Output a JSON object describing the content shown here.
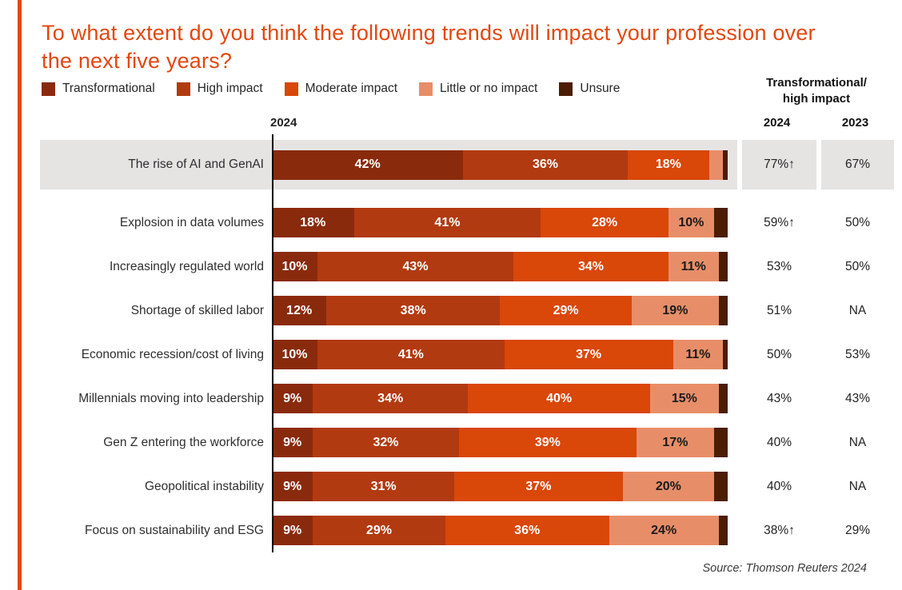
{
  "chart_data": {
    "type": "bar",
    "variant": "horizontal-stacked",
    "title": "To what extent do you think the following trends will impact your profession over the next five years?",
    "axis_label": "2024",
    "label_threshold": 9,
    "categories": [
      "The rise of AI and GenAI",
      "Explosion in data volumes",
      "Increasingly regulated world",
      "Shortage of skilled labor",
      "Economic recession/cost of living",
      "Millennials moving into leadership",
      "Gen Z entering the workforce",
      "Geopolitical instability",
      "Focus on sustainability and ESG"
    ],
    "series": [
      {
        "name": "Transformational",
        "color": "#8A2A0C",
        "text_color": "#FFFFFF",
        "show_labels": true,
        "values": [
          42,
          18,
          10,
          12,
          10,
          9,
          9,
          9,
          9
        ]
      },
      {
        "name": "High impact",
        "color": "#B23A10",
        "text_color": "#FFFFFF",
        "show_labels": true,
        "values": [
          36,
          41,
          43,
          38,
          41,
          34,
          32,
          31,
          29
        ]
      },
      {
        "name": "Moderate impact",
        "color": "#D94709",
        "text_color": "#FFFFFF",
        "show_labels": true,
        "values": [
          18,
          28,
          34,
          29,
          37,
          40,
          39,
          37,
          36
        ]
      },
      {
        "name": "Little or no impact",
        "color": "#E78E68",
        "text_color": "#1A1A1A",
        "show_labels": true,
        "values": [
          3,
          10,
          11,
          19,
          11,
          15,
          17,
          20,
          24
        ]
      },
      {
        "name": "Unsure",
        "color": "#4C1D05",
        "text_color": "#FFFFFF",
        "show_labels": false,
        "values": [
          1,
          3,
          2,
          2,
          1,
          2,
          3,
          3,
          2
        ]
      }
    ],
    "highlighted_row": 0,
    "summary": {
      "header_line1": "Transformational/",
      "header_line2": "high impact",
      "col1_label": "2024",
      "col2_label": "2023",
      "col1_values": [
        "77%↑",
        "59%↑",
        "53%",
        "51%",
        "50%",
        "43%",
        "40%",
        "40%",
        "38%↑"
      ],
      "col2_values": [
        "67%",
        "50%",
        "50%",
        "NA",
        "53%",
        "43%",
        "NA",
        "NA",
        "29%"
      ]
    },
    "source": "Source: Thomson Reuters 2024",
    "colors": {
      "accent": "#E3470F",
      "highlight_bg": "#E5E4E3"
    }
  }
}
